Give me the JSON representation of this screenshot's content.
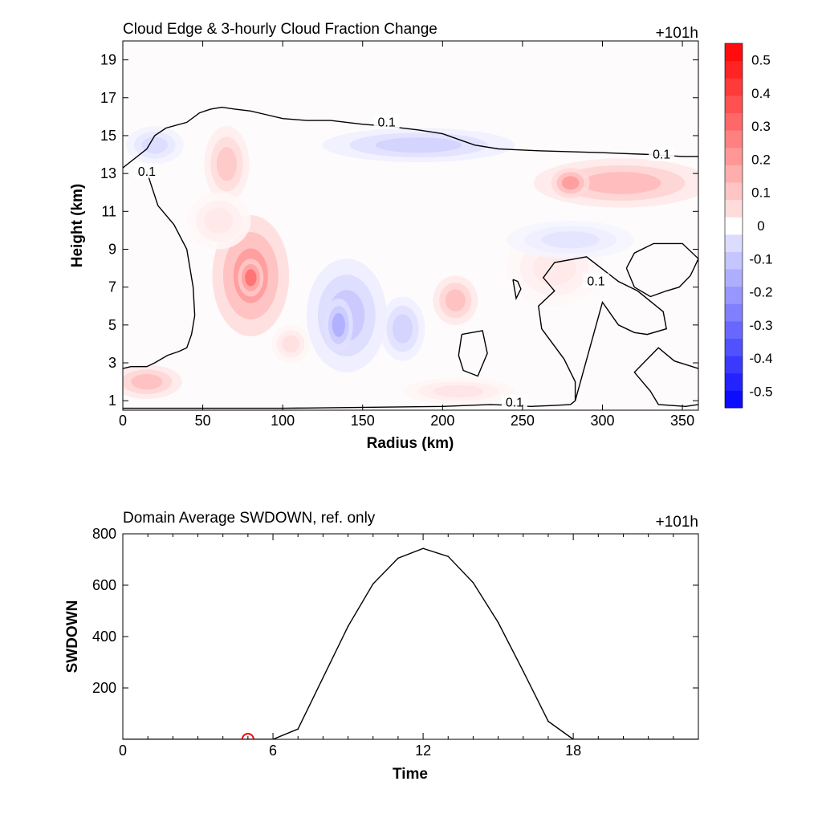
{
  "chart_data": [
    {
      "type": "heatmap",
      "title": "Cloud Edge & 3-hourly Cloud Fraction Change",
      "time_label": "+101h",
      "xlabel": "Radius (km)",
      "ylabel": "Height (km)",
      "xlim": [
        0,
        360
      ],
      "ylim": [
        0.5,
        20
      ],
      "xticks": [
        0,
        50,
        100,
        150,
        200,
        250,
        300,
        350
      ],
      "yticks": [
        1,
        3,
        5,
        7,
        9,
        11,
        13,
        15,
        17,
        19
      ],
      "colorbar": {
        "levels": [
          -0.55,
          -0.5,
          -0.45,
          -0.4,
          -0.35,
          -0.3,
          -0.25,
          -0.2,
          -0.15,
          -0.1,
          -0.05,
          0.05,
          0.1,
          0.15,
          0.2,
          0.25,
          0.3,
          0.35,
          0.4,
          0.45,
          0.5,
          0.55
        ],
        "labels": [
          "0.5",
          "0.4",
          "0.3",
          "0.2",
          "0.1",
          "0",
          "-0.1",
          "-0.2",
          "-0.3",
          "-0.4",
          "-0.5"
        ],
        "label_values": [
          0.5,
          0.4,
          0.3,
          0.2,
          0.1,
          0,
          -0.1,
          -0.2,
          -0.3,
          -0.4,
          -0.5
        ],
        "colors": {
          "negative_max": "#0000ff",
          "positive_max": "#ff0000",
          "zero": "#ffffff"
        }
      },
      "blobs": [
        {
          "x": 80,
          "y": 7.6,
          "rx": 24,
          "ry": 3.2,
          "value": 0.22
        },
        {
          "x": 80,
          "y": 7.5,
          "rx": 8,
          "ry": 1.0,
          "value": 0.32
        },
        {
          "x": 65,
          "y": 13.5,
          "rx": 14,
          "ry": 2.0,
          "value": 0.12
        },
        {
          "x": 140,
          "y": 5.5,
          "rx": 25,
          "ry": 3.0,
          "value": -0.12
        },
        {
          "x": 135,
          "y": 5.0,
          "rx": 9,
          "ry": 1.4,
          "value": -0.18
        },
        {
          "x": 175,
          "y": 4.8,
          "rx": 14,
          "ry": 1.7,
          "value": -0.1
        },
        {
          "x": 185,
          "y": 14.5,
          "rx": 60,
          "ry": 0.9,
          "value": -0.1
        },
        {
          "x": 20,
          "y": 14.5,
          "rx": 18,
          "ry": 1.0,
          "value": -0.08
        },
        {
          "x": 312,
          "y": 12.5,
          "rx": 55,
          "ry": 1.3,
          "value": 0.15
        },
        {
          "x": 280,
          "y": 12.5,
          "rx": 12,
          "ry": 0.8,
          "value": 0.22
        },
        {
          "x": 208,
          "y": 6.3,
          "rx": 14,
          "ry": 1.3,
          "value": 0.14
        },
        {
          "x": 15,
          "y": 2.0,
          "rx": 22,
          "ry": 0.9,
          "value": 0.14
        },
        {
          "x": 105,
          "y": 4.0,
          "rx": 12,
          "ry": 1.0,
          "value": 0.07
        },
        {
          "x": 210,
          "y": 1.5,
          "rx": 35,
          "ry": 0.7,
          "value": 0.06
        },
        {
          "x": 270,
          "y": 8.0,
          "rx": 30,
          "ry": 2.0,
          "value": 0.05
        },
        {
          "x": 60,
          "y": 10.5,
          "rx": 20,
          "ry": 1.5,
          "value": 0.05
        },
        {
          "x": 280,
          "y": 9.5,
          "rx": 40,
          "ry": 1.0,
          "value": -0.06
        }
      ],
      "contour_level": "0.1",
      "contours": [
        {
          "label_positions": [
            [
              165,
              15.7
            ],
            [
              337,
              14.0
            ]
          ],
          "x": [
            0,
            15,
            20,
            27,
            40,
            48,
            55,
            62,
            70,
            80,
            90,
            100,
            115,
            130,
            150,
            165,
            185,
            200,
            210,
            220,
            235,
            260,
            300,
            330,
            350,
            360
          ],
          "y": [
            13.3,
            14.3,
            15.0,
            15.4,
            15.7,
            16.2,
            16.4,
            16.5,
            16.4,
            16.3,
            16.1,
            15.9,
            15.8,
            15.8,
            15.6,
            15.5,
            15.3,
            15.1,
            14.8,
            14.5,
            14.3,
            14.2,
            14.1,
            14.0,
            13.9,
            13.9
          ]
        },
        {
          "label_positions": [
            [
              15,
              13.1
            ]
          ],
          "x": [
            15,
            22,
            32,
            40,
            44,
            45,
            43,
            40,
            35,
            28,
            20,
            15,
            5,
            0
          ],
          "y": [
            13.1,
            11.3,
            10.3,
            9.0,
            7.0,
            5.5,
            4.5,
            3.8,
            3.6,
            3.4,
            3.0,
            2.8,
            2.8,
            2.7
          ]
        },
        {
          "label_positions": [
            [
              245,
              0.9
            ]
          ],
          "x": [
            0,
            100,
            200,
            230,
            245,
            255,
            270,
            280,
            283
          ],
          "y": [
            0.6,
            0.6,
            0.7,
            0.8,
            0.75,
            0.7,
            0.75,
            0.8,
            1.0
          ]
        },
        {
          "label_positions": [
            [
              296,
              7.3
            ]
          ],
          "x": [
            283,
            283,
            276,
            262,
            260,
            270,
            263,
            270,
            290,
            310,
            322,
            338,
            340,
            328,
            320,
            310,
            300,
            283
          ],
          "y": [
            1.0,
            2.0,
            3.2,
            4.8,
            6.0,
            6.8,
            7.5,
            8.3,
            8.6,
            7.3,
            6.8,
            5.7,
            4.8,
            4.5,
            4.6,
            5.0,
            6.2,
            1.0
          ]
        },
        {
          "label_positions": [],
          "x": [
            315,
            320,
            332,
            350,
            360,
            355,
            348,
            340,
            330,
            320,
            315
          ],
          "y": [
            8.0,
            8.8,
            9.3,
            9.3,
            8.5,
            7.6,
            7.0,
            6.8,
            6.5,
            7.0,
            8.0
          ]
        },
        {
          "label_positions": [],
          "x": [
            212,
            225,
            228,
            222,
            213,
            210,
            212
          ],
          "y": [
            4.5,
            4.7,
            3.5,
            2.3,
            2.6,
            3.4,
            4.5
          ]
        },
        {
          "label_positions": [],
          "x": [
            244,
            247,
            249,
            246,
            244
          ],
          "y": [
            7.4,
            7.3,
            6.9,
            6.4,
            7.4
          ]
        },
        {
          "label_positions": [],
          "x": [
            360,
            345,
            335,
            320,
            330,
            335,
            352,
            360
          ],
          "y": [
            2.7,
            3.1,
            3.8,
            2.5,
            1.5,
            0.8,
            0.7,
            0.8
          ]
        }
      ]
    },
    {
      "type": "line",
      "title": "Domain Average SWDOWN, ref. only",
      "time_label": "+101h",
      "xlabel": "Time",
      "ylabel": "SWDOWN",
      "xlim": [
        0,
        23
      ],
      "ylim": [
        0,
        800
      ],
      "xticks": [
        0,
        6,
        12,
        18
      ],
      "yticks": [
        200,
        400,
        600,
        800
      ],
      "series": [
        {
          "x": [
            0,
            1,
            2,
            3,
            4,
            5,
            6,
            7,
            8,
            9,
            10,
            11,
            12,
            13,
            14,
            15,
            16,
            17,
            18,
            19,
            20,
            21,
            22,
            23
          ],
          "values": [
            0,
            0,
            0,
            0,
            0,
            0,
            0,
            40,
            240,
            440,
            605,
            705,
            743,
            712,
            610,
            455,
            265,
            70,
            0,
            0,
            0,
            0,
            0,
            0
          ]
        }
      ],
      "marker": {
        "x": 5,
        "y": 0,
        "color": "#ff0000"
      }
    }
  ]
}
